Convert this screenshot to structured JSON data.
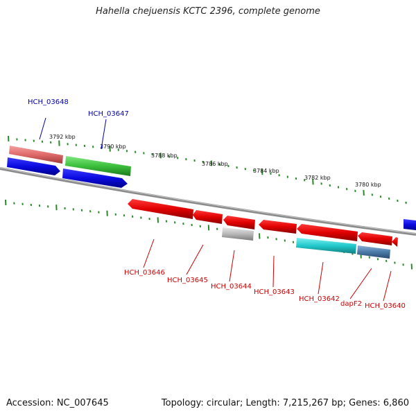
{
  "title": "Hahella chejuensis KCTC 2396, complete genome",
  "footer": {
    "accession": "Accession: NC_007645",
    "info": "Topology: circular; Length: 7,215,267 bp; Genes: 6,860"
  },
  "scale_labels": [
    "3792 kbp",
    "3790 kbp",
    "3788 kbp",
    "3786 kbp",
    "3784 kbp",
    "3782 kbp",
    "3780 kbp"
  ],
  "gene_labels_top": [
    "HCH_03648",
    "HCH_03647"
  ],
  "gene_labels_bottom": [
    "HCH_03646",
    "HCH_03645",
    "HCH_03644",
    "HCH_03643",
    "HCH_03642",
    "dapF2",
    "HCH_03640"
  ],
  "colors": {
    "forward_strand": "#0a0ae0",
    "reverse_strand": "#e00000",
    "label_top": "#0000aa",
    "label_bottom": "#cc0000",
    "tick": "#2a8a2a",
    "backbone": "#8a8a8a",
    "feature_pink": "#e06a6a",
    "feature_green": "#3cbf3c",
    "feature_gray": "#b8b8b8",
    "feature_cyan": "#22c8cc",
    "feature_steel": "#4a7aa8"
  }
}
